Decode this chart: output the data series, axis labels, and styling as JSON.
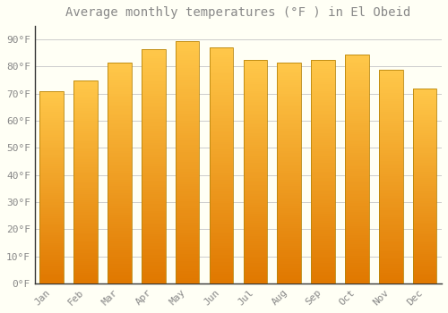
{
  "title": "Average monthly temperatures (°F ) in El Obeid",
  "months": [
    "Jan",
    "Feb",
    "Mar",
    "Apr",
    "May",
    "Jun",
    "Jul",
    "Aug",
    "Sep",
    "Oct",
    "Nov",
    "Dec"
  ],
  "values": [
    71.0,
    75.0,
    81.5,
    86.5,
    89.5,
    87.0,
    82.5,
    81.5,
    82.5,
    84.5,
    79.0,
    72.0
  ],
  "bar_color_top": "#FFC84A",
  "bar_color_bottom": "#E07800",
  "bar_edge_color": "#B8860B",
  "background_color": "#FFFFF5",
  "plot_bg_color": "#FFFFF5",
  "grid_color": "#CCCCCC",
  "text_color": "#888888",
  "spine_color": "#333333",
  "yticks": [
    0,
    10,
    20,
    30,
    40,
    50,
    60,
    70,
    80,
    90
  ],
  "ylim": [
    0,
    95
  ],
  "title_fontsize": 10,
  "tick_fontsize": 8,
  "bar_width": 0.7
}
